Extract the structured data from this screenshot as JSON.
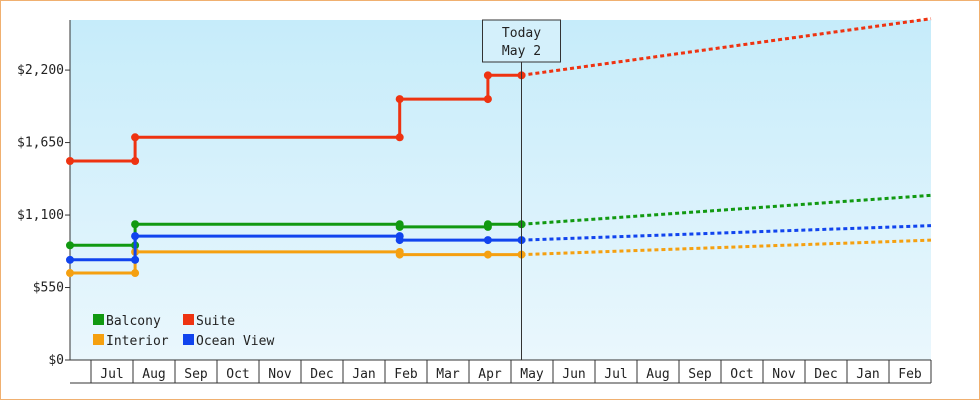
{
  "chart_data": {
    "type": "line",
    "title": "",
    "xlabel": "",
    "ylabel": "",
    "ylim": [
      0,
      2580
    ],
    "y_ticks": [
      {
        "value": 0,
        "label": "$0"
      },
      {
        "value": 550,
        "label": "$550"
      },
      {
        "value": 1100,
        "label": "$1,100"
      },
      {
        "value": 1650,
        "label": "$1,650"
      },
      {
        "value": 2200,
        "label": "$2,200"
      }
    ],
    "x_months": [
      "",
      "Jul",
      "Aug",
      "Sep",
      "Oct",
      "Nov",
      "Dec",
      "Jan",
      "Feb",
      "Mar",
      "Apr",
      "May",
      "Jun",
      "Jul",
      "Aug",
      "Sep",
      "Oct",
      "Nov",
      "Dec",
      "Jan",
      "Feb"
    ],
    "today": {
      "line1": "Today",
      "line2": "May 2",
      "x": 10.75
    },
    "legend": {
      "placement": "bottom-left",
      "entries": [
        "Balcony",
        "Suite",
        "Interior",
        "Ocean View"
      ]
    },
    "series": [
      {
        "name": "Balcony",
        "color": "#119911",
        "x": [
          0,
          1.55,
          1.55,
          7.85,
          7.85,
          9.95,
          9.95,
          10.75
        ],
        "y": [
          870,
          870,
          1030,
          1030,
          1010,
          1010,
          1030,
          1030
        ],
        "forecast": {
          "x": [
            10.75,
            20.5
          ],
          "y": [
            1030,
            1250
          ]
        }
      },
      {
        "name": "Suite",
        "color": "#ee3311",
        "x": [
          0,
          1.55,
          1.55,
          7.85,
          7.85,
          9.95,
          9.95,
          10.75
        ],
        "y": [
          1510,
          1510,
          1690,
          1690,
          1980,
          1980,
          2160,
          2160
        ],
        "forecast": {
          "x": [
            10.75,
            20.5
          ],
          "y": [
            2160,
            2590
          ]
        }
      },
      {
        "name": "Interior",
        "color": "#f5a010",
        "x": [
          0,
          1.55,
          1.55,
          7.85,
          7.85,
          9.95,
          10.75
        ],
        "y": [
          660,
          660,
          820,
          820,
          800,
          800,
          800
        ],
        "forecast": {
          "x": [
            10.75,
            20.5
          ],
          "y": [
            800,
            910
          ]
        }
      },
      {
        "name": "Ocean View",
        "color": "#1144ee",
        "x": [
          0,
          1.55,
          1.55,
          7.85,
          7.85,
          9.95,
          10.75
        ],
        "y": [
          760,
          760,
          940,
          940,
          910,
          910,
          910
        ],
        "forecast": {
          "x": [
            10.75,
            20.5
          ],
          "y": [
            910,
            1020
          ]
        }
      }
    ]
  }
}
